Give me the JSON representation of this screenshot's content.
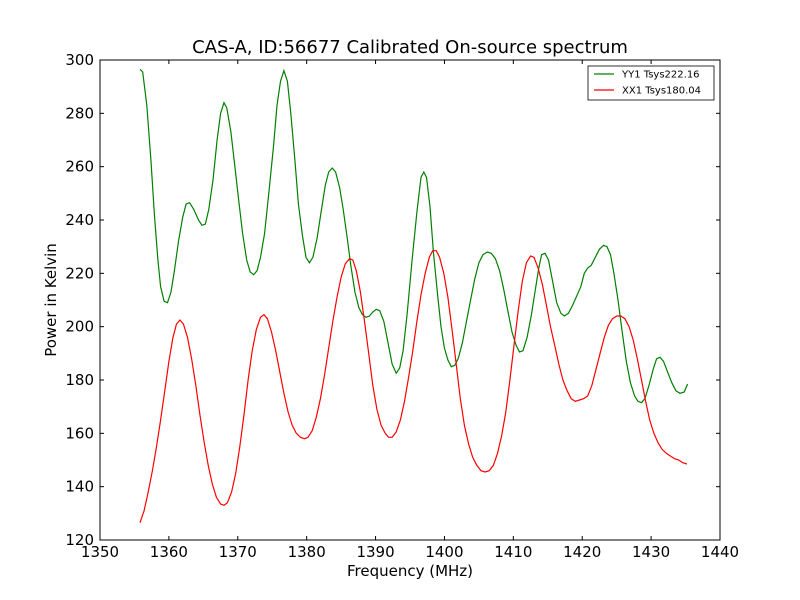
{
  "chart_data": {
    "type": "line",
    "title": "CAS-A, ID:56677 Calibrated On-source spectrum",
    "xlabel": "Frequency (MHz)",
    "ylabel": "Power in Kelvin",
    "xlim": [
      1350,
      1440
    ],
    "ylim": [
      120,
      300
    ],
    "xticks": [
      1350,
      1360,
      1370,
      1380,
      1390,
      1400,
      1410,
      1420,
      1430,
      1440
    ],
    "yticks": [
      120,
      140,
      160,
      180,
      200,
      220,
      240,
      260,
      280,
      300
    ],
    "grid": false,
    "legend_position": "top-right",
    "series": [
      {
        "name": "YY1 Tsys222.16",
        "color": "#008000",
        "points": [
          [
            1355.8,
            296.5
          ],
          [
            1356.2,
            295.5
          ],
          [
            1356.8,
            283
          ],
          [
            1357.4,
            262
          ],
          [
            1357.9,
            242
          ],
          [
            1358.4,
            225
          ],
          [
            1358.8,
            215
          ],
          [
            1359.3,
            209.5
          ],
          [
            1359.8,
            209
          ],
          [
            1360.3,
            213
          ],
          [
            1360.8,
            221
          ],
          [
            1361.4,
            232
          ],
          [
            1362.0,
            241
          ],
          [
            1362.5,
            246
          ],
          [
            1363.0,
            246.5
          ],
          [
            1363.6,
            244
          ],
          [
            1364.3,
            240
          ],
          [
            1364.8,
            238
          ],
          [
            1365.3,
            238.5
          ],
          [
            1365.8,
            244
          ],
          [
            1366.4,
            255
          ],
          [
            1367.0,
            270
          ],
          [
            1367.5,
            280
          ],
          [
            1368.0,
            284
          ],
          [
            1368.4,
            282
          ],
          [
            1369.0,
            273
          ],
          [
            1369.5,
            262
          ],
          [
            1370.1,
            248
          ],
          [
            1370.7,
            235
          ],
          [
            1371.3,
            225
          ],
          [
            1371.8,
            220.5
          ],
          [
            1372.3,
            219.5
          ],
          [
            1372.8,
            221
          ],
          [
            1373.3,
            226
          ],
          [
            1373.9,
            235
          ],
          [
            1374.5,
            250
          ],
          [
            1375.2,
            268
          ],
          [
            1375.7,
            283
          ],
          [
            1376.2,
            292
          ],
          [
            1376.7,
            296
          ],
          [
            1377.2,
            292
          ],
          [
            1377.7,
            280
          ],
          [
            1378.3,
            262
          ],
          [
            1378.8,
            246
          ],
          [
            1379.4,
            234
          ],
          [
            1379.9,
            226
          ],
          [
            1380.4,
            224
          ],
          [
            1380.9,
            226
          ],
          [
            1381.5,
            233
          ],
          [
            1382.1,
            243
          ],
          [
            1382.7,
            253
          ],
          [
            1383.2,
            258
          ],
          [
            1383.7,
            259.5
          ],
          [
            1384.2,
            258
          ],
          [
            1384.8,
            252
          ],
          [
            1385.3,
            244
          ],
          [
            1385.9,
            233
          ],
          [
            1386.4,
            223
          ],
          [
            1387.0,
            213
          ],
          [
            1387.6,
            207
          ],
          [
            1388.1,
            204.5
          ],
          [
            1388.6,
            203.5
          ],
          [
            1389.1,
            204
          ],
          [
            1389.6,
            205.5
          ],
          [
            1390.1,
            206.5
          ],
          [
            1390.6,
            206
          ],
          [
            1391.2,
            202
          ],
          [
            1391.8,
            194
          ],
          [
            1392.4,
            186
          ],
          [
            1393.0,
            182.5
          ],
          [
            1393.5,
            184.5
          ],
          [
            1394.0,
            191
          ],
          [
            1394.6,
            205
          ],
          [
            1395.3,
            225
          ],
          [
            1396.0,
            243
          ],
          [
            1396.6,
            256
          ],
          [
            1397.0,
            258
          ],
          [
            1397.4,
            256
          ],
          [
            1397.9,
            245
          ],
          [
            1398.4,
            228
          ],
          [
            1399.0,
            212
          ],
          [
            1399.5,
            200
          ],
          [
            1400.0,
            192
          ],
          [
            1400.5,
            187.5
          ],
          [
            1401.0,
            185
          ],
          [
            1401.5,
            185.5
          ],
          [
            1402.0,
            188
          ],
          [
            1402.6,
            194
          ],
          [
            1403.2,
            202
          ],
          [
            1403.8,
            210
          ],
          [
            1404.4,
            218
          ],
          [
            1405.0,
            224
          ],
          [
            1405.6,
            227
          ],
          [
            1406.2,
            228
          ],
          [
            1406.8,
            227.5
          ],
          [
            1407.4,
            225.5
          ],
          [
            1408.0,
            221
          ],
          [
            1408.6,
            214
          ],
          [
            1409.2,
            206
          ],
          [
            1409.8,
            198
          ],
          [
            1410.4,
            193
          ],
          [
            1410.9,
            190.5
          ],
          [
            1411.4,
            191
          ],
          [
            1412.0,
            196
          ],
          [
            1412.6,
            204
          ],
          [
            1413.2,
            214
          ],
          [
            1413.7,
            222
          ],
          [
            1414.1,
            227
          ],
          [
            1414.6,
            227.5
          ],
          [
            1415.1,
            225
          ],
          [
            1415.7,
            217
          ],
          [
            1416.3,
            209
          ],
          [
            1416.9,
            205
          ],
          [
            1417.4,
            204
          ],
          [
            1418.0,
            205
          ],
          [
            1418.6,
            208
          ],
          [
            1419.2,
            211.5
          ],
          [
            1419.8,
            215
          ],
          [
            1420.3,
            220
          ],
          [
            1420.8,
            222
          ],
          [
            1421.3,
            223
          ],
          [
            1421.9,
            226
          ],
          [
            1422.5,
            229
          ],
          [
            1423.1,
            230.5
          ],
          [
            1423.6,
            230
          ],
          [
            1424.1,
            227
          ],
          [
            1424.6,
            220
          ],
          [
            1425.2,
            210
          ],
          [
            1425.8,
            198
          ],
          [
            1426.4,
            187
          ],
          [
            1427.0,
            179
          ],
          [
            1427.6,
            174
          ],
          [
            1428.1,
            172
          ],
          [
            1428.6,
            171.5
          ],
          [
            1429.1,
            173
          ],
          [
            1429.7,
            178
          ],
          [
            1430.3,
            184
          ],
          [
            1430.8,
            188
          ],
          [
            1431.3,
            188.5
          ],
          [
            1431.8,
            187
          ],
          [
            1432.4,
            183
          ],
          [
            1433.0,
            179
          ],
          [
            1433.6,
            176
          ],
          [
            1434.2,
            175
          ],
          [
            1434.8,
            175.5
          ],
          [
            1435.3,
            178.5
          ]
        ]
      },
      {
        "name": "XX1 Tsys180.04",
        "color": "#ff0000",
        "points": [
          [
            1355.8,
            126.5
          ],
          [
            1356.4,
            131
          ],
          [
            1357.0,
            138
          ],
          [
            1357.6,
            146
          ],
          [
            1358.2,
            155
          ],
          [
            1358.8,
            165
          ],
          [
            1359.4,
            176
          ],
          [
            1360.0,
            187
          ],
          [
            1360.6,
            196
          ],
          [
            1361.1,
            201
          ],
          [
            1361.6,
            202.5
          ],
          [
            1362.1,
            201
          ],
          [
            1362.7,
            196
          ],
          [
            1363.3,
            188
          ],
          [
            1363.9,
            178
          ],
          [
            1364.5,
            167
          ],
          [
            1365.1,
            157
          ],
          [
            1365.7,
            148
          ],
          [
            1366.3,
            141
          ],
          [
            1366.9,
            136
          ],
          [
            1367.5,
            133.5
          ],
          [
            1368.0,
            133
          ],
          [
            1368.5,
            134
          ],
          [
            1369.1,
            138
          ],
          [
            1369.7,
            145
          ],
          [
            1370.3,
            155
          ],
          [
            1370.9,
            167
          ],
          [
            1371.5,
            180
          ],
          [
            1372.1,
            191
          ],
          [
            1372.7,
            199
          ],
          [
            1373.3,
            203.5
          ],
          [
            1373.8,
            204.5
          ],
          [
            1374.3,
            203
          ],
          [
            1374.9,
            198
          ],
          [
            1375.5,
            191
          ],
          [
            1376.1,
            183
          ],
          [
            1376.7,
            175
          ],
          [
            1377.3,
            168
          ],
          [
            1377.9,
            163
          ],
          [
            1378.5,
            160
          ],
          [
            1379.1,
            158.5
          ],
          [
            1379.7,
            158
          ],
          [
            1380.2,
            158.5
          ],
          [
            1380.8,
            161
          ],
          [
            1381.4,
            166
          ],
          [
            1382.0,
            173
          ],
          [
            1382.6,
            182
          ],
          [
            1383.2,
            192
          ],
          [
            1383.8,
            202
          ],
          [
            1384.4,
            211
          ],
          [
            1385.0,
            218.5
          ],
          [
            1385.6,
            223.5
          ],
          [
            1386.2,
            225.5
          ],
          [
            1386.7,
            225
          ],
          [
            1387.2,
            221
          ],
          [
            1387.8,
            213
          ],
          [
            1388.4,
            202
          ],
          [
            1389.0,
            190
          ],
          [
            1389.6,
            178
          ],
          [
            1390.2,
            169
          ],
          [
            1390.8,
            163
          ],
          [
            1391.4,
            160
          ],
          [
            1391.9,
            158.5
          ],
          [
            1392.4,
            158.5
          ],
          [
            1393.0,
            160.5
          ],
          [
            1393.6,
            165
          ],
          [
            1394.2,
            172
          ],
          [
            1394.8,
            181
          ],
          [
            1395.4,
            191
          ],
          [
            1396.0,
            202
          ],
          [
            1396.6,
            212
          ],
          [
            1397.2,
            220
          ],
          [
            1397.8,
            226
          ],
          [
            1398.3,
            228.5
          ],
          [
            1398.8,
            228.5
          ],
          [
            1399.3,
            226
          ],
          [
            1399.9,
            220
          ],
          [
            1400.5,
            211
          ],
          [
            1401.1,
            199
          ],
          [
            1401.7,
            186
          ],
          [
            1402.3,
            173
          ],
          [
            1402.9,
            163
          ],
          [
            1403.5,
            156
          ],
          [
            1404.1,
            151
          ],
          [
            1404.7,
            148
          ],
          [
            1405.3,
            146
          ],
          [
            1405.9,
            145.5
          ],
          [
            1406.5,
            146
          ],
          [
            1407.1,
            148
          ],
          [
            1407.7,
            152.5
          ],
          [
            1408.3,
            159
          ],
          [
            1408.9,
            168
          ],
          [
            1409.5,
            180
          ],
          [
            1410.1,
            193
          ],
          [
            1410.7,
            206
          ],
          [
            1411.3,
            217
          ],
          [
            1411.9,
            224
          ],
          [
            1412.5,
            226.5
          ],
          [
            1413.0,
            226
          ],
          [
            1413.6,
            222
          ],
          [
            1414.2,
            216
          ],
          [
            1414.8,
            208
          ],
          [
            1415.4,
            200
          ],
          [
            1416.0,
            193
          ],
          [
            1416.6,
            186
          ],
          [
            1417.2,
            180
          ],
          [
            1417.8,
            176
          ],
          [
            1418.4,
            173
          ],
          [
            1419.0,
            172
          ],
          [
            1419.6,
            172.5
          ],
          [
            1420.2,
            173
          ],
          [
            1420.8,
            174
          ],
          [
            1421.4,
            178
          ],
          [
            1422.0,
            184
          ],
          [
            1422.6,
            190
          ],
          [
            1423.2,
            196
          ],
          [
            1423.8,
            200.5
          ],
          [
            1424.4,
            203
          ],
          [
            1425.0,
            204
          ],
          [
            1425.6,
            204
          ],
          [
            1426.2,
            203
          ],
          [
            1426.8,
            200
          ],
          [
            1427.4,
            195
          ],
          [
            1428.0,
            188
          ],
          [
            1428.6,
            180
          ],
          [
            1429.2,
            172
          ],
          [
            1429.8,
            165
          ],
          [
            1430.4,
            160
          ],
          [
            1431.0,
            156.5
          ],
          [
            1431.6,
            154
          ],
          [
            1432.2,
            152.5
          ],
          [
            1432.8,
            151.5
          ],
          [
            1433.4,
            150.5
          ],
          [
            1434.0,
            150
          ],
          [
            1434.6,
            149
          ],
          [
            1435.2,
            148.5
          ]
        ]
      }
    ]
  }
}
